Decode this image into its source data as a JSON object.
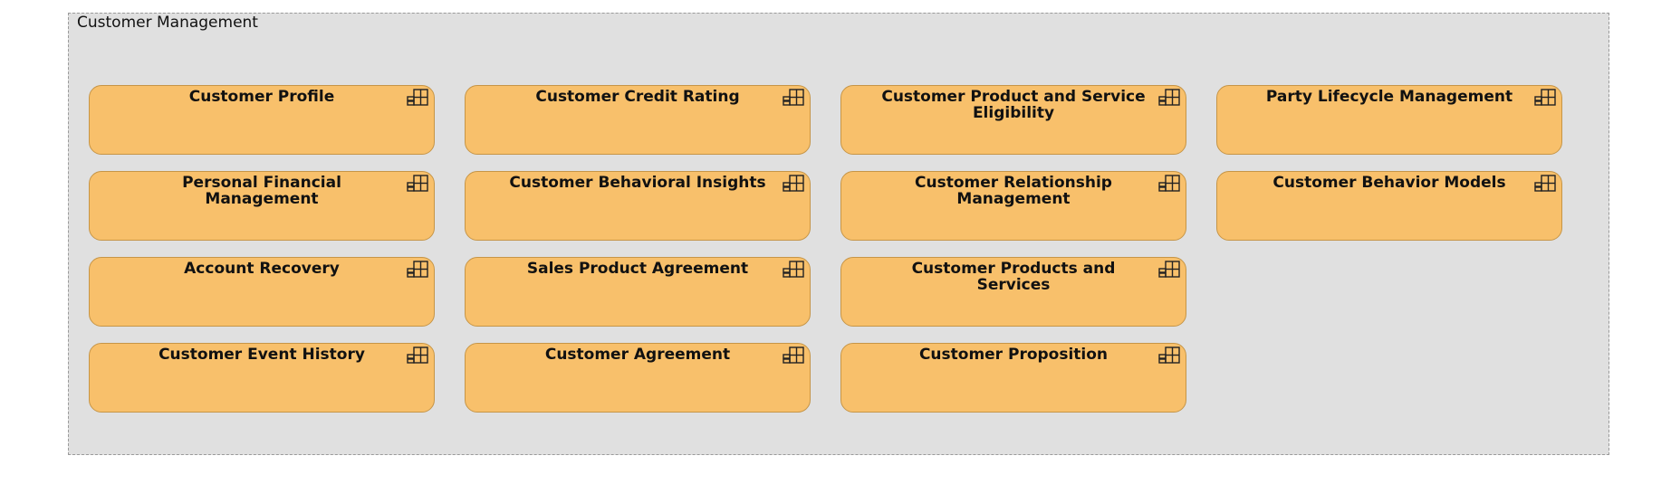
{
  "group": {
    "title": "Customer Management"
  },
  "icons": {
    "component_icon": "archimate-application-component-icon"
  },
  "colors": {
    "component_fill": "#f8c06b",
    "component_border": "#c69547",
    "group_fill": "#e0e0e0"
  },
  "components": [
    {
      "label": "Customer Profile"
    },
    {
      "label": "Customer Credit Rating"
    },
    {
      "label": "Customer Product and Service Eligibility"
    },
    {
      "label": "Party Lifecycle Management"
    },
    {
      "label": "Personal Financial Management"
    },
    {
      "label": "Customer Behavioral Insights"
    },
    {
      "label": "Customer Relationship Management"
    },
    {
      "label": "Customer Behavior Models"
    },
    {
      "label": "Account Recovery"
    },
    {
      "label": "Sales Product Agreement"
    },
    {
      "label": "Customer Products and Services"
    },
    {
      "label": "Customer Event History"
    },
    {
      "label": "Customer Agreement"
    },
    {
      "label": "Customer Proposition"
    }
  ]
}
